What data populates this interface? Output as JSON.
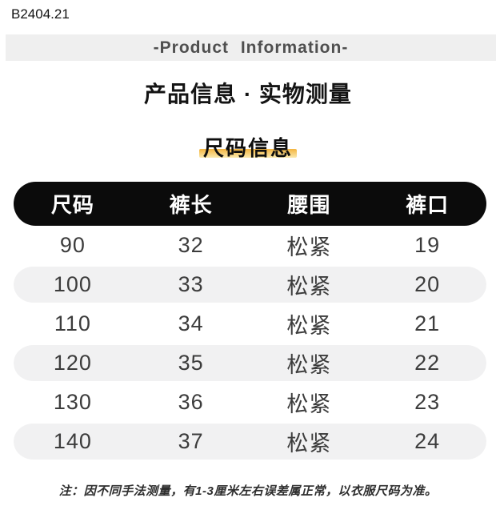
{
  "page": {
    "sku": "B2404.21",
    "banner_title": "-Product Information-",
    "heading": "产品信息 · 实物测量",
    "subheading": "尺码信息",
    "note": "注：因不同手法测量，有1-3厘米左右误差属正常，以衣服尺码为准。"
  },
  "size_table": {
    "columns": [
      "尺码",
      "裤长",
      "腰围",
      "裤口"
    ],
    "rows": [
      [
        "90",
        "32",
        "松紧",
        "19"
      ],
      [
        "100",
        "33",
        "松紧",
        "20"
      ],
      [
        "110",
        "34",
        "松紧",
        "21"
      ],
      [
        "120",
        "35",
        "松紧",
        "22"
      ],
      [
        "130",
        "36",
        "松紧",
        "23"
      ],
      [
        "140",
        "37",
        "松紧",
        "24"
      ]
    ]
  },
  "colors": {
    "banner_bg": "#efefef",
    "banner_text": "#4f4f4f",
    "header_pill_bg": "#0b0b0b",
    "header_text": "#ffffff",
    "row_alt_bg": "#f1f1f2",
    "row_text": "#3c3c3c",
    "highlight_yellow": "#f3b43f"
  }
}
